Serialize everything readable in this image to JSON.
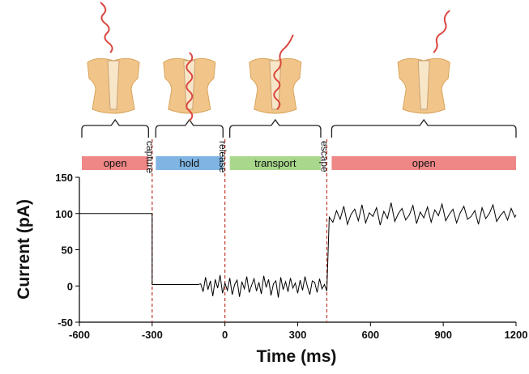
{
  "chart_data": {
    "type": "line",
    "xlabel": "Time (ms)",
    "ylabel": "Current (pA)",
    "xlim": [
      -600,
      1200
    ],
    "xticks": [
      -600,
      -300,
      0,
      300,
      600,
      900,
      1200
    ],
    "ylim": [
      -50,
      150
    ],
    "yticks": [
      -50,
      0,
      50,
      100,
      150
    ],
    "phases": [
      {
        "label": "open",
        "start": -590,
        "end": -315,
        "color": "#ef8787"
      },
      {
        "label": "hold",
        "start": -285,
        "end": -8,
        "color": "#80b4e2"
      },
      {
        "label": "transport",
        "start": 20,
        "end": 395,
        "color": "#a9d88c"
      },
      {
        "label": "open",
        "start": 440,
        "end": 1200,
        "color": "#ef8787"
      }
    ],
    "events": [
      {
        "label": "capture",
        "x": -300
      },
      {
        "label": "release",
        "x": 0
      },
      {
        "label": "escape",
        "x": 420
      }
    ],
    "series": [
      {
        "color": "#000000",
        "x": [
          -600,
          -300,
          -300,
          -110,
          -100,
          -90,
          -80,
          -70,
          -60,
          -50,
          -40,
          -30,
          -20,
          -10,
          0,
          10,
          20,
          30,
          40,
          50,
          60,
          70,
          80,
          90,
          100,
          110,
          120,
          130,
          140,
          150,
          160,
          170,
          180,
          190,
          200,
          210,
          220,
          230,
          240,
          250,
          260,
          270,
          280,
          290,
          300,
          310,
          320,
          330,
          340,
          350,
          360,
          370,
          380,
          390,
          400,
          410,
          420,
          430,
          445,
          460,
          475,
          490,
          505,
          520,
          535,
          550,
          565,
          580,
          595,
          610,
          625,
          640,
          655,
          670,
          685,
          700,
          715,
          730,
          745,
          760,
          775,
          790,
          805,
          820,
          835,
          850,
          865,
          880,
          895,
          910,
          925,
          940,
          955,
          970,
          985,
          1000,
          1015,
          1030,
          1045,
          1060,
          1075,
          1090,
          1105,
          1120,
          1135,
          1150,
          1165,
          1180,
          1195,
          1200
        ],
        "values": [
          100,
          100,
          2,
          2,
          3,
          -8,
          12,
          -5,
          7,
          -14,
          9,
          -3,
          15,
          -10,
          4,
          -6,
          11,
          -12,
          2,
          8,
          -15,
          6,
          -4,
          13,
          -9,
          1,
          10,
          -7,
          5,
          -11,
          14,
          -2,
          9,
          -13,
          3,
          7,
          -16,
          12,
          -5,
          6,
          -8,
          11,
          -3,
          4,
          -10,
          8,
          -6,
          13,
          -1,
          -12,
          7,
          5,
          -9,
          10,
          -4,
          2,
          -7,
          95,
          88,
          104,
          92,
          110,
          85,
          99,
          106,
          90,
          112,
          87,
          101,
          96,
          108,
          84,
          103,
          93,
          115,
          89,
          100,
          107,
          91,
          98,
          111,
          86,
          102,
          94,
          109,
          88,
          105,
          97,
          113,
          90,
          99,
          106,
          87,
          101,
          110,
          92,
          96,
          104,
          85,
          108,
          93,
          100,
          112,
          89,
          97,
          103,
          91,
          107,
          95,
          98
        ]
      }
    ]
  }
}
